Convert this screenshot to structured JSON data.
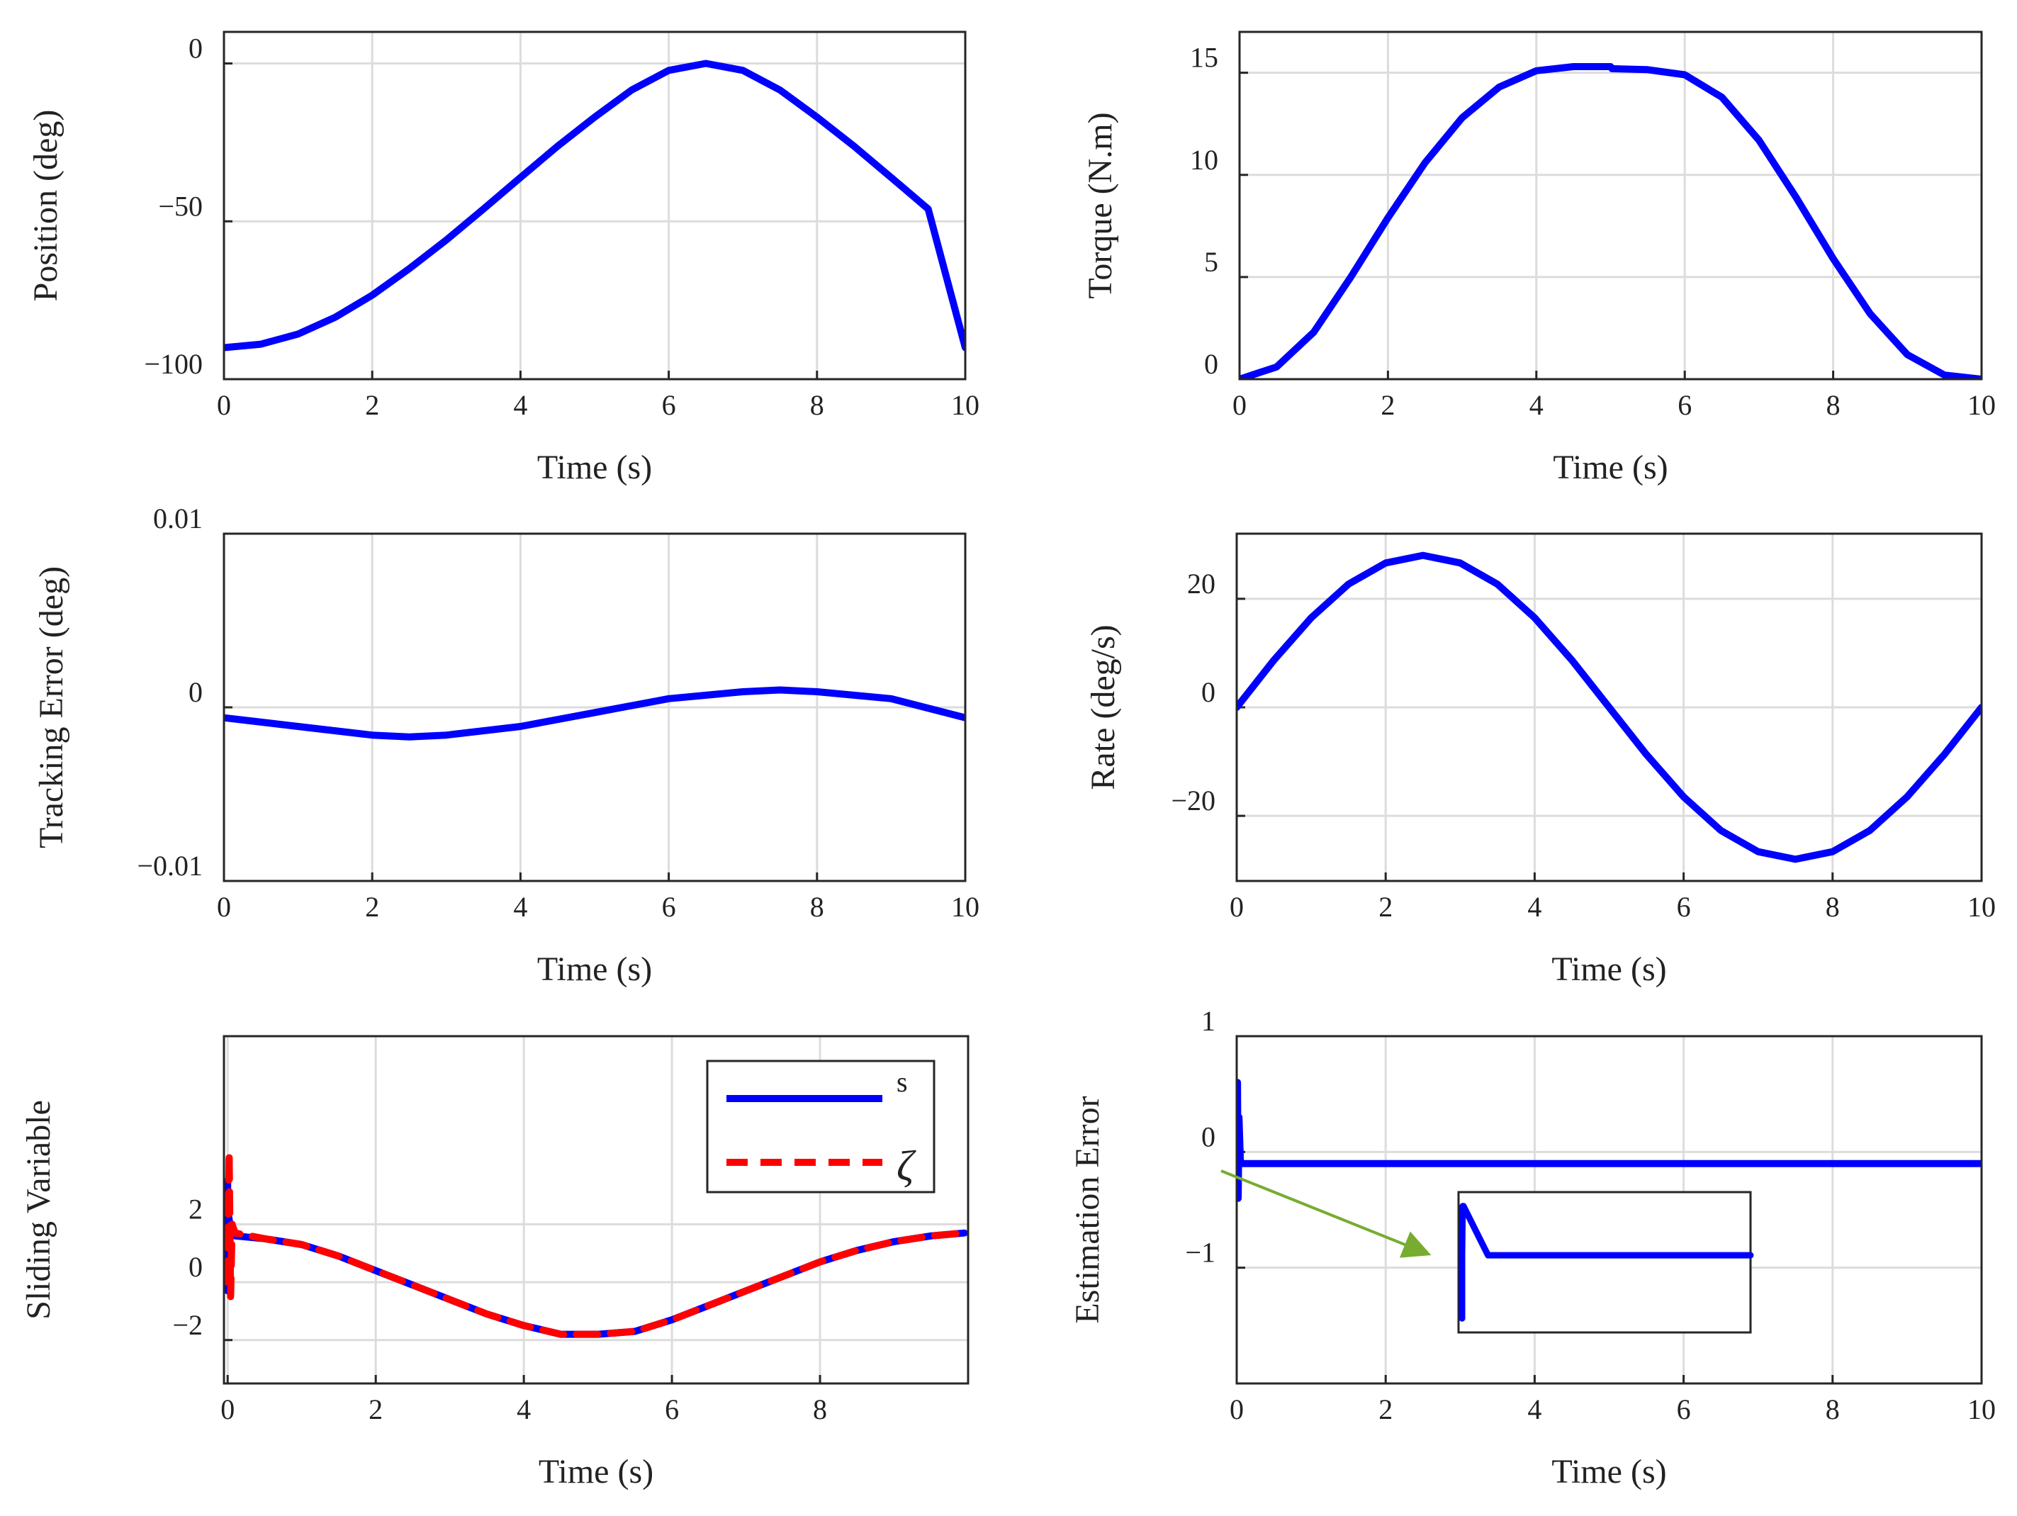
{
  "figure": {
    "background": "#ffffff",
    "curve_color": "#0000ff",
    "dashed_color": "#ff0000",
    "arrow_color": "#77ac30"
  },
  "chart_data": [
    {
      "id": "position",
      "type": "line",
      "xlabel": "Time (s)",
      "ylabel": "Position (deg)",
      "xlim": [
        0,
        10
      ],
      "ylim": [
        -100,
        10
      ],
      "xticks": [
        0,
        2,
        4,
        6,
        8,
        10
      ],
      "xtick_labels": [
        "0",
        "2",
        "4",
        "6",
        "8",
        "10"
      ],
      "yticks": [
        -100,
        -50,
        0
      ],
      "ytick_labels": [
        "−100",
        "−50",
        "0"
      ],
      "grid": true,
      "series": [
        {
          "name": "position",
          "color": "#0000ff",
          "x": [
            0,
            0.5,
            1,
            1.5,
            2,
            2.5,
            3,
            3.5,
            4,
            4.5,
            5,
            5.5,
            6,
            6.5,
            7,
            7.5,
            8,
            8.5,
            9,
            9.5,
            10
          ],
          "y": [
            -90,
            -88.9,
            -85.7,
            -80.4,
            -73.4,
            -65,
            -55.9,
            -46.1,
            -36.1,
            -26.2,
            -17,
            -8.4,
            -2.2,
            0,
            -2.2,
            -8.4,
            -17,
            -26.2,
            -36.1,
            -46.1,
            -90
          ]
        }
      ]
    },
    {
      "id": "torque",
      "type": "line",
      "xlabel": "Time (s)",
      "ylabel": "Torque (N.m)",
      "xlim": [
        0,
        10
      ],
      "ylim": [
        0,
        17
      ],
      "xticks": [
        0,
        2,
        4,
        6,
        8,
        10
      ],
      "xtick_labels": [
        "0",
        "2",
        "4",
        "6",
        "8",
        "10"
      ],
      "yticks": [
        0,
        5,
        10,
        15
      ],
      "ytick_labels": [
        "0",
        "5",
        "10",
        "15"
      ],
      "grid": true,
      "series": [
        {
          "name": "torque",
          "color": "#0000ff",
          "x": [
            0,
            0.5,
            1,
            1.5,
            2,
            2.5,
            3,
            3.5,
            4,
            4.5,
            5,
            5.02,
            5.5,
            6,
            6.5,
            7,
            7.5,
            8,
            8.5,
            9,
            9.5,
            10
          ],
          "y": [
            0,
            0.6,
            2.3,
            5,
            7.9,
            10.6,
            12.8,
            14.3,
            15.1,
            15.3,
            15.3,
            15.2,
            15.15,
            14.9,
            13.8,
            11.7,
            8.9,
            5.9,
            3.2,
            1.2,
            0.2,
            0
          ]
        }
      ]
    },
    {
      "id": "tracking_error",
      "type": "line",
      "xlabel": "Time (s)",
      "ylabel": "Tracking Error (deg)",
      "xlim": [
        0,
        10
      ],
      "ylim": [
        -0.01,
        0.01
      ],
      "xticks": [
        0,
        2,
        4,
        6,
        8,
        10
      ],
      "xtick_labels": [
        "0",
        "2",
        "4",
        "6",
        "8",
        "10"
      ],
      "yticks": [
        -0.01,
        0,
        0.01
      ],
      "ytick_labels": [
        "−0.01",
        "0",
        "0.01"
      ],
      "grid": true,
      "series": [
        {
          "name": "tracking error",
          "color": "#0000ff",
          "x": [
            0,
            1,
            2,
            2.5,
            3,
            4,
            5,
            6,
            7,
            7.5,
            8,
            9,
            10
          ],
          "y": [
            -0.0006,
            -0.0011,
            -0.0016,
            -0.0017,
            -0.0016,
            -0.0011,
            -0.0003,
            0.0005,
            0.0009,
            0.001,
            0.0009,
            0.0005,
            -0.0006
          ]
        }
      ]
    },
    {
      "id": "rate",
      "type": "line",
      "xlabel": "Time (s)",
      "ylabel": "Rate (deg/s)",
      "xlim": [
        0,
        10
      ],
      "ylim": [
        -32,
        32
      ],
      "xticks": [
        0,
        2,
        4,
        6,
        8,
        10
      ],
      "xtick_labels": [
        "0",
        "2",
        "4",
        "6",
        "8",
        "10"
      ],
      "yticks": [
        -20,
        0,
        20
      ],
      "ytick_labels": [
        "−20",
        "0",
        "20"
      ],
      "grid": true,
      "series": [
        {
          "name": "rate",
          "color": "#0000ff",
          "x": [
            0,
            0.5,
            1,
            1.5,
            2,
            2.5,
            3,
            3.5,
            4,
            4.5,
            5,
            5.5,
            6,
            6.5,
            7,
            7.5,
            8,
            8.5,
            9,
            9.5,
            10
          ],
          "y": [
            0,
            8.7,
            16.5,
            22.7,
            26.6,
            28,
            26.6,
            22.7,
            16.5,
            8.7,
            0,
            -8.7,
            -16.5,
            -22.7,
            -26.6,
            -28,
            -26.6,
            -22.7,
            -16.5,
            -8.7,
            0
          ]
        }
      ]
    },
    {
      "id": "sliding_variable",
      "type": "line",
      "xlabel": "Time (s)",
      "ylabel": "Sliding Variable",
      "xlim": [
        -0.05,
        10
      ],
      "ylim": [
        -3.5,
        8.5
      ],
      "xticks": [
        0,
        2,
        4,
        6,
        8
      ],
      "xtick_labels": [
        "0",
        "2",
        "4",
        "6",
        "8"
      ],
      "yticks": [
        -2,
        0,
        2
      ],
      "ytick_labels": [
        "−2",
        "0",
        "2"
      ],
      "grid": true,
      "legend": {
        "location": "top-right",
        "entries": [
          "s",
          "ζ"
        ]
      },
      "series": [
        {
          "name": "s",
          "color": "#0000ff",
          "style": "solid",
          "x": [
            0,
            0,
            0,
            0,
            0.05,
            0.1,
            0.5,
            1,
            1.5,
            2,
            2.5,
            3,
            3.5,
            4,
            4.5,
            5,
            5.5,
            6,
            6.5,
            7,
            7.5,
            8,
            8.5,
            9,
            9.5,
            9.95
          ],
          "y": [
            0,
            3.5,
            -0.3,
            2.5,
            1.7,
            1.6,
            1.5,
            1.3,
            0.9,
            0.4,
            -0.1,
            -0.6,
            -1.1,
            -1.5,
            -1.8,
            -1.8,
            -1.7,
            -1.3,
            -0.8,
            -0.3,
            0.2,
            0.7,
            1.1,
            1.4,
            1.6,
            1.7
          ]
        },
        {
          "name": "ζ",
          "color": "#ff0000",
          "style": "dashed",
          "x": [
            0,
            0.02,
            0.04,
            0.06,
            0.1,
            0.5,
            1,
            1.5,
            2,
            2.5,
            3,
            3.5,
            4,
            4.5,
            5,
            5.5,
            6,
            6.5,
            7,
            7.5,
            8,
            8.5,
            9,
            9.5,
            9.95
          ],
          "y": [
            0,
            4.5,
            -0.5,
            2,
            1.7,
            1.5,
            1.3,
            0.9,
            0.4,
            -0.1,
            -0.6,
            -1.1,
            -1.5,
            -1.8,
            -1.8,
            -1.7,
            -1.3,
            -0.8,
            -0.3,
            0.2,
            0.7,
            1.1,
            1.4,
            1.6,
            1.7
          ]
        }
      ]
    },
    {
      "id": "estimation_error",
      "type": "line",
      "xlabel": "Time (s)",
      "ylabel": "Estimation Error",
      "xlim": [
        0,
        10
      ],
      "ylim": [
        -2,
        1
      ],
      "xticks": [
        0,
        2,
        4,
        6,
        8,
        10
      ],
      "xtick_labels": [
        "0",
        "2",
        "4",
        "6",
        "8",
        "10"
      ],
      "yticks": [
        -1,
        0,
        1
      ],
      "ytick_labels": [
        "−1",
        "0",
        "1"
      ],
      "grid": true,
      "series": [
        {
          "name": "estimation error",
          "color": "#0000ff",
          "x": [
            0,
            0.01,
            0.02,
            0.03,
            0.05,
            2,
            4,
            6,
            8,
            10
          ],
          "y": [
            0,
            0.6,
            -0.4,
            0.3,
            -0.1,
            -0.1,
            -0.1,
            -0.1,
            -0.1,
            -0.1
          ]
        }
      ],
      "inset": {
        "description": "zoom of initial transient",
        "x": [
          0,
          0.02,
          0.2,
          1,
          5,
          10
        ],
        "y": [
          0.05,
          1,
          0.3,
          0.3,
          0.3,
          0.3
        ],
        "spike_bottom": -0.6
      }
    }
  ]
}
